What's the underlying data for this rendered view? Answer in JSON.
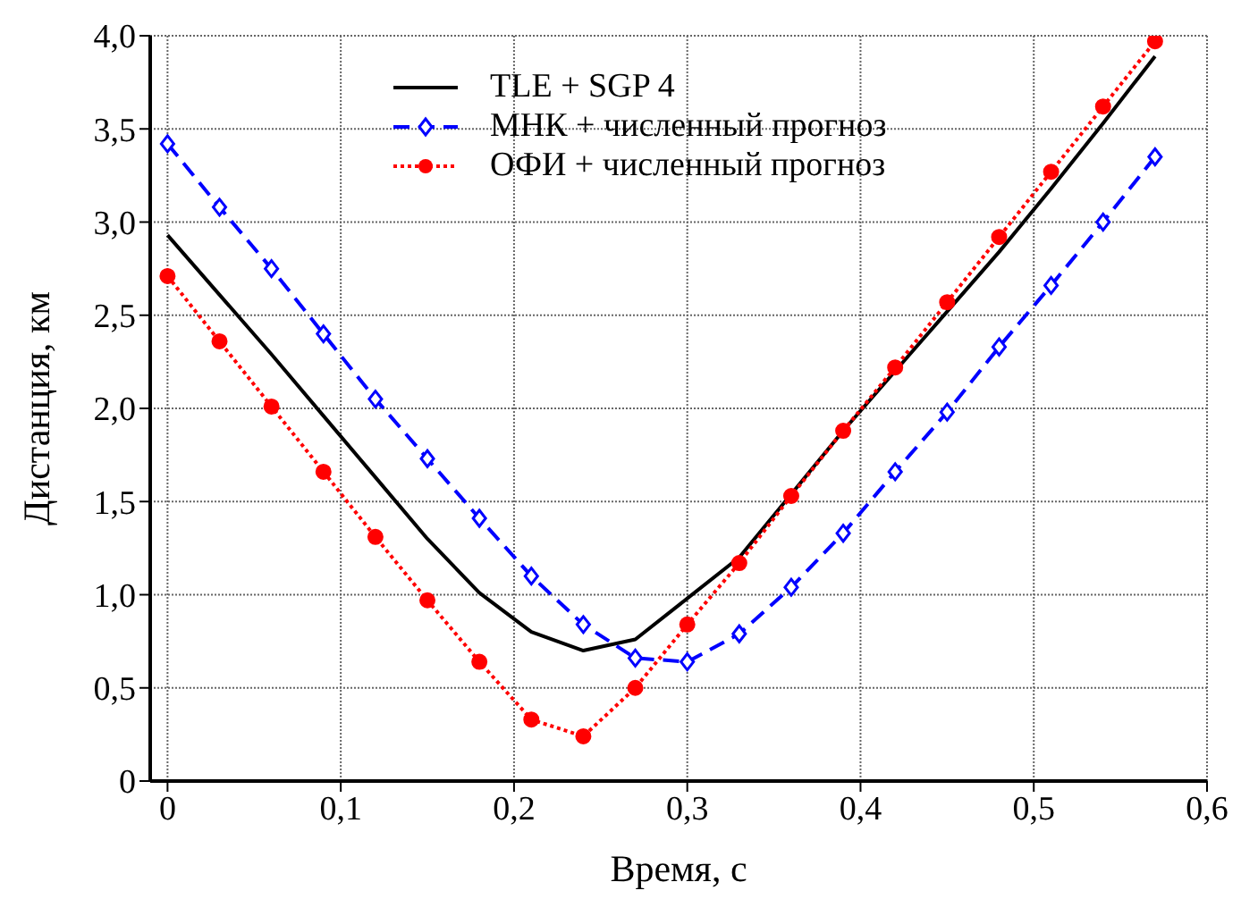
{
  "chart_data": {
    "type": "line",
    "xlabel": "Время, с",
    "ylabel": "Дистанция, км",
    "x": [
      0,
      0.03,
      0.06,
      0.09,
      0.12,
      0.15,
      0.18,
      0.21,
      0.24,
      0.27,
      0.3,
      0.33,
      0.36,
      0.39,
      0.42,
      0.45,
      0.48,
      0.51,
      0.54,
      0.57
    ],
    "series": [
      {
        "name": "TLE + SGP 4",
        "color": "#000000",
        "marker": "none",
        "line_style": "solid",
        "values": [
          2.93,
          2.61,
          2.29,
          1.96,
          1.63,
          1.3,
          1.01,
          0.8,
          0.7,
          0.76,
          0.98,
          1.2,
          1.54,
          1.88,
          2.2,
          2.52,
          2.84,
          3.18,
          3.53,
          3.89
        ]
      },
      {
        "name": "МНК + численный прогноз",
        "color": "#0000ff",
        "marker": "diamond",
        "line_style": "dashed",
        "values": [
          3.42,
          3.08,
          2.75,
          2.4,
          2.05,
          1.73,
          1.41,
          1.1,
          0.84,
          0.66,
          0.64,
          0.79,
          1.04,
          1.33,
          1.66,
          1.98,
          2.33,
          2.66,
          3.0,
          3.35
        ]
      },
      {
        "name": "ОФИ + численный прогноз",
        "color": "#ff0000",
        "marker": "circle",
        "line_style": "dotted",
        "values": [
          2.71,
          2.36,
          2.01,
          1.66,
          1.31,
          0.97,
          0.64,
          0.33,
          0.24,
          0.5,
          0.84,
          1.17,
          1.53,
          1.88,
          2.22,
          2.57,
          2.92,
          3.27,
          3.62,
          3.97
        ]
      }
    ],
    "xlim": [
      -0.01,
      0.6
    ],
    "xticks": [
      0,
      {
        "value": 0.1,
        "label": "0,1"
      },
      {
        "value": 0.2,
        "label": "0,2"
      },
      {
        "value": 0.3,
        "label": "0,3"
      },
      {
        "value": 0.4,
        "label": "0,4"
      },
      {
        "value": 0.5,
        "label": "0,5"
      },
      {
        "value": 0.6,
        "label": "0,6"
      }
    ],
    "ylim": [
      0,
      4
    ],
    "yticks": [
      0,
      {
        "value": 0.5,
        "label": "0,5"
      },
      {
        "value": 1,
        "label": "1,0"
      },
      {
        "value": 1.5,
        "label": "1,5"
      },
      {
        "value": 2,
        "label": "2,0"
      },
      {
        "value": 2.5,
        "label": "2,5"
      },
      {
        "value": 3,
        "label": "3,0"
      },
      {
        "value": 3.5,
        "label": "3,5"
      },
      {
        "value": 4,
        "label": "4,0"
      }
    ],
    "grid": true,
    "legend": "top"
  }
}
